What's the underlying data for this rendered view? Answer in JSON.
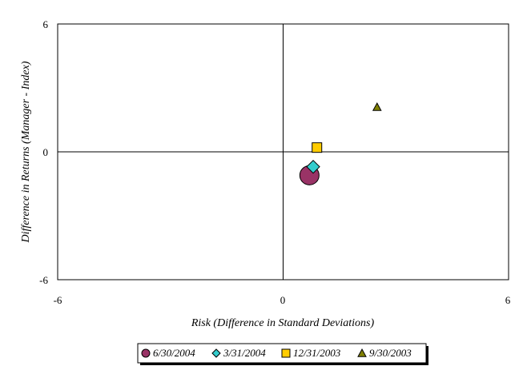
{
  "chart_data": {
    "type": "scatter",
    "xlabel": "Risk (Difference in Standard Deviations)",
    "ylabel": "Difference in Returns (Manager - Index)",
    "xlim": [
      -6,
      6
    ],
    "ylim": [
      -6,
      6
    ],
    "x_ticks": [
      "-6",
      "0",
      "6"
    ],
    "y_ticks": [
      "6",
      "0",
      "-6"
    ],
    "grid": false,
    "legend_position": "bottom",
    "series": [
      {
        "name": "6/30/2004",
        "x": [
          0.7
        ],
        "y": [
          -1.1
        ],
        "marker": "circle",
        "color": "#993366"
      },
      {
        "name": "3/31/2004",
        "x": [
          0.8
        ],
        "y": [
          -0.7
        ],
        "marker": "diamond",
        "color": "#33cccc"
      },
      {
        "name": "12/31/2003",
        "x": [
          0.9
        ],
        "y": [
          0.2
        ],
        "marker": "square",
        "color": "#ffcc00"
      },
      {
        "name": "9/30/2003",
        "x": [
          2.5
        ],
        "y": [
          2.1
        ],
        "marker": "triangle",
        "color": "#808000"
      }
    ]
  }
}
